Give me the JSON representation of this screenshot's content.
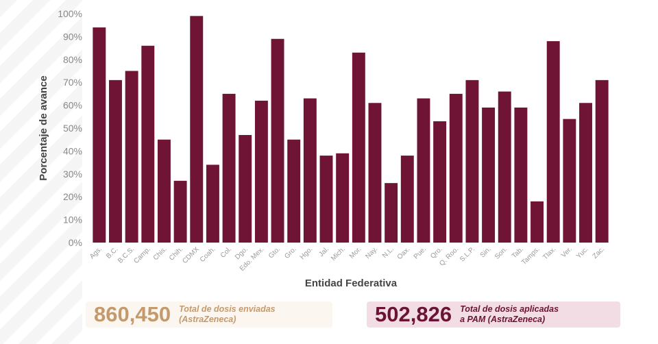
{
  "chart_data": {
    "type": "bar",
    "title": "",
    "xlabel": "Entidad Federativa",
    "ylabel": "Porcentaje de avance",
    "ylim": [
      0,
      100
    ],
    "yticks": [
      "0%",
      "10%",
      "20%",
      "30%",
      "40%",
      "50%",
      "60%",
      "70%",
      "80%",
      "90%",
      "100%"
    ],
    "grid": false,
    "color": "#6f1434",
    "categories": [
      "Ags.",
      "B.C.",
      "B.C.S.",
      "Camp.",
      "Chis.",
      "Chih.",
      "CDMX",
      "Coah.",
      "Col.",
      "Dgo.",
      "Edo. Mex.",
      "Gto.",
      "Gro.",
      "Hgo.",
      "Jal.",
      "Mich.",
      "Mor.",
      "Nay.",
      "N.L.",
      "Oax.",
      "Pue.",
      "Qro.",
      "Q. Roo.",
      "S.L.P.",
      "Sin.",
      "Son.",
      "Tab.",
      "Tamps.",
      "Tlax.",
      "Ver.",
      "Yuc.",
      "Zac."
    ],
    "values": [
      94,
      71,
      75,
      86,
      45,
      27,
      99,
      34,
      65,
      47,
      62,
      89,
      45,
      63,
      38,
      39,
      83,
      61,
      26,
      38,
      63,
      53,
      65,
      71,
      59,
      66,
      59,
      18,
      88,
      54,
      61,
      71
    ]
  },
  "stats": [
    {
      "value": "860,450",
      "label": "Total de dosis enviadas\n(AstraZeneca)"
    },
    {
      "value": "502,826",
      "label": "Total de dosis aplicadas\na PAM (AstraZeneca)"
    }
  ]
}
